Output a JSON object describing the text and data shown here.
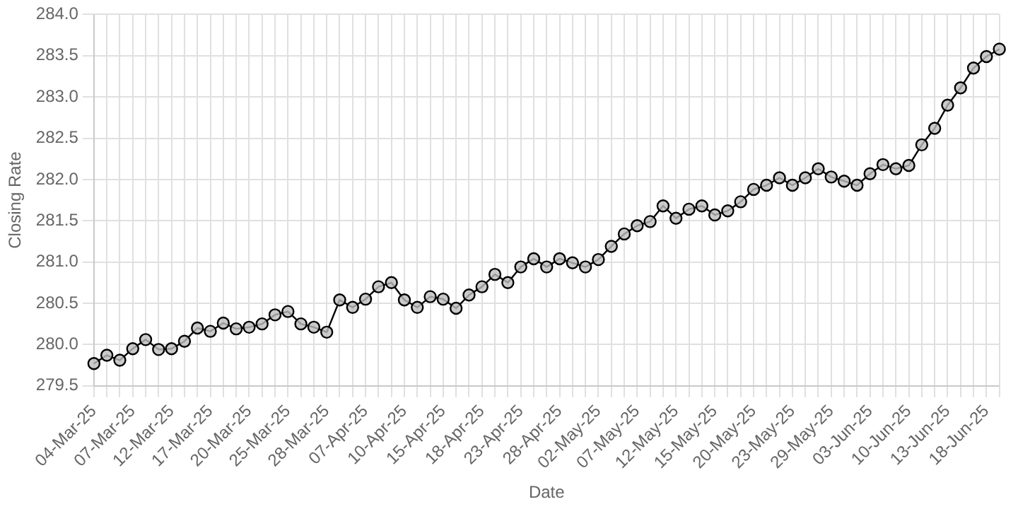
{
  "chart_data": {
    "type": "line",
    "xlabel": "Date",
    "ylabel": "Closing Rate",
    "categories": [
      "04-Mar-25",
      null,
      null,
      "07-Mar-25",
      null,
      null,
      "12-Mar-25",
      null,
      null,
      "17-Mar-25",
      null,
      null,
      "20-Mar-25",
      null,
      null,
      "25-Mar-25",
      null,
      null,
      "28-Mar-25",
      null,
      null,
      "07-Apr-25",
      null,
      null,
      "10-Apr-25",
      null,
      null,
      "15-Apr-25",
      null,
      null,
      "18-Apr-25",
      null,
      null,
      "23-Apr-25",
      null,
      null,
      "28-Apr-25",
      null,
      null,
      "02-May-25",
      null,
      null,
      "07-May-25",
      null,
      null,
      "12-May-25",
      null,
      null,
      "15-May-25",
      null,
      null,
      "20-May-25",
      null,
      null,
      "23-May-25",
      null,
      null,
      "29-May-25",
      null,
      null,
      "03-Jun-25",
      null,
      null,
      "10-Jun-25",
      null,
      null,
      "13-Jun-25",
      null,
      null,
      "18-Jun-25",
      null
    ],
    "series": [
      {
        "color": "#000000",
        "values": [
          279.77,
          279.87,
          279.81,
          279.95,
          280.06,
          279.94,
          279.95,
          280.04,
          280.2,
          280.16,
          280.26,
          280.19,
          280.21,
          280.25,
          280.36,
          280.4,
          280.25,
          280.21,
          280.15,
          280.54,
          280.45,
          280.55,
          280.7,
          280.75,
          280.54,
          280.45,
          280.58,
          280.55,
          280.44,
          280.6,
          280.7,
          280.85,
          280.75,
          280.94,
          281.04,
          280.94,
          281.04,
          280.99,
          280.94,
          281.03,
          281.19,
          281.34,
          281.44,
          281.49,
          281.68,
          281.53,
          281.64,
          281.68,
          281.57,
          281.62,
          281.73,
          281.88,
          281.93,
          282.02,
          281.93,
          282.02,
          282.13,
          282.03,
          281.98,
          281.93,
          282.07,
          282.18,
          282.13,
          282.17,
          282.42,
          282.62,
          282.9,
          283.11,
          283.35,
          283.49,
          283.58
        ]
      }
    ],
    "ylim": [
      279.5,
      284.0
    ],
    "yticks": [
      {
        "value": 279.5,
        "label": "279.5"
      },
      {
        "value": 280,
        "label": "280.0"
      },
      {
        "value": 280.5,
        "label": "280.5"
      },
      {
        "value": 281,
        "label": "281.0"
      },
      {
        "value": 281.5,
        "label": "281.5"
      },
      {
        "value": 282,
        "label": "282.0"
      },
      {
        "value": 282.5,
        "label": "282.5"
      },
      {
        "value": 283,
        "label": "283.0"
      },
      {
        "value": 283.5,
        "label": "283.5"
      },
      {
        "value": 284,
        "label": "284.0"
      }
    ],
    "grid": true,
    "legend": false,
    "marker": "circle",
    "line_style": "solid"
  }
}
